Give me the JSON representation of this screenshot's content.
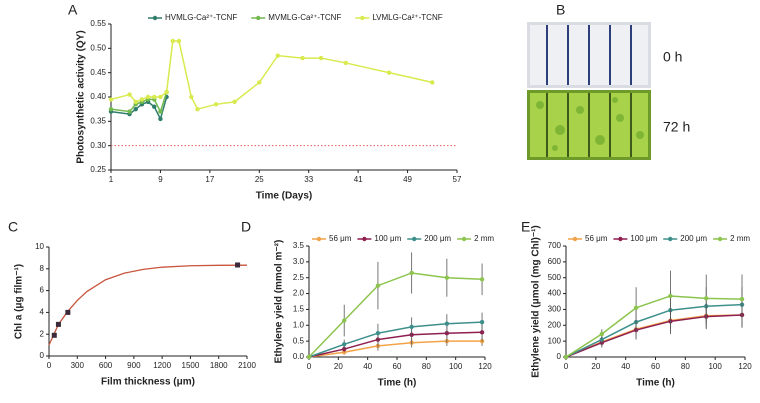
{
  "chart_data": [
    {
      "type": "line",
      "panel": "A",
      "x_label": "Time (Days)",
      "y_label": "Photosynthetic activity (QY)",
      "xlim": [
        1,
        57
      ],
      "xticks": [
        1,
        9,
        17,
        25,
        33,
        41,
        49,
        57
      ],
      "ylim": [
        0.25,
        0.55
      ],
      "yticks": [
        0.25,
        {
          "value": 0.3,
          "label": "0.30"
        },
        0.35,
        {
          "value": 0.4,
          "label": "0.40"
        },
        0.45,
        {
          "value": 0.5,
          "label": "0.50"
        },
        0.55
      ],
      "legend": "top",
      "reference_line": {
        "value": 0.3,
        "color": "#e05a5a"
      },
      "series": [
        {
          "name": "HVMLG-Ca²⁺-TCNF",
          "color": "#2f7d6a",
          "x": [
            1,
            4,
            5,
            6,
            7,
            8,
            9,
            10
          ],
          "values": [
            0.37,
            0.365,
            0.375,
            0.385,
            0.39,
            0.38,
            0.355,
            0.4
          ]
        },
        {
          "name": "MVMLG-Ca²⁺-TCNF",
          "color": "#72b94f",
          "x": [
            1,
            4,
            5,
            6,
            7,
            8,
            9,
            10
          ],
          "values": [
            0.375,
            0.37,
            0.385,
            0.39,
            0.395,
            0.395,
            0.37,
            0.41
          ]
        },
        {
          "name": "LVMLG-Ca²⁺-TCNF",
          "color": "#d8ea4e",
          "x": [
            1,
            4,
            5,
            6,
            7,
            8,
            9,
            10,
            11,
            12,
            14,
            15,
            18,
            21,
            25,
            28,
            32,
            35,
            39,
            46,
            53
          ],
          "values": [
            0.395,
            0.405,
            0.39,
            0.395,
            0.4,
            0.4,
            0.4,
            0.41,
            0.515,
            0.515,
            0.4,
            0.375,
            0.385,
            0.39,
            0.43,
            0.485,
            0.48,
            0.48,
            0.47,
            0.45,
            0.43
          ]
        }
      ]
    },
    {
      "type": "scatter",
      "panel": "C",
      "x_label": "Film thickness (μm)",
      "y_label": "Chl a (μg film⁻¹)",
      "xlim": [
        0,
        2100
      ],
      "xticks": [
        0,
        300,
        600,
        900,
        1200,
        1500,
        1800,
        2100
      ],
      "ylim": [
        0,
        10
      ],
      "yticks": [
        0,
        2,
        4,
        6,
        8,
        10
      ],
      "series": [
        {
          "mode": "line",
          "color": "#c8553d",
          "x": [
            0,
            100,
            200,
            300,
            400,
            600,
            800,
            1000,
            1200,
            1500,
            1800,
            2100
          ],
          "values": [
            1.0,
            2.9,
            4.1,
            5.1,
            5.9,
            7.0,
            7.6,
            7.95,
            8.15,
            8.28,
            8.32,
            8.33
          ]
        },
        {
          "mode": "markers",
          "color": "#3a2a3a",
          "x": [
            56,
            100,
            200,
            2000
          ],
          "values": [
            1.9,
            2.9,
            4.0,
            8.35
          ]
        }
      ]
    },
    {
      "type": "line",
      "panel": "D",
      "x_label": "Time (h)",
      "y_label": "Ethylene yield (mmol m⁻²)",
      "xlim": [
        0,
        120
      ],
      "xticks": [
        0,
        20,
        40,
        60,
        80,
        100,
        120
      ],
      "ylim": [
        0,
        3.5
      ],
      "yticks": [
        {
          "value": 0,
          "label": "0.0"
        },
        0.5,
        {
          "value": 1,
          "label": "1.0"
        },
        1.5,
        {
          "value": 2,
          "label": "2.0"
        },
        2.5,
        {
          "value": 3,
          "label": "3.0"
        },
        3.5
      ],
      "legend": "top",
      "series": [
        {
          "name": "56 μm",
          "color": "#f2a348",
          "x": [
            0,
            24,
            47,
            70,
            94,
            118
          ],
          "values": [
            0,
            0.15,
            0.35,
            0.45,
            0.5,
            0.5
          ],
          "errors": [
            0,
            0.08,
            0.15,
            0.15,
            0.15,
            0.15
          ]
        },
        {
          "name": "100 μm",
          "color": "#8e1f50",
          "x": [
            0,
            24,
            47,
            70,
            94,
            118
          ],
          "values": [
            0,
            0.25,
            0.55,
            0.7,
            0.75,
            0.78
          ],
          "errors": [
            0,
            0.1,
            0.25,
            0.3,
            0.3,
            0.3
          ]
        },
        {
          "name": "200 μm",
          "color": "#3d8f8c",
          "x": [
            0,
            24,
            47,
            70,
            94,
            118
          ],
          "values": [
            0,
            0.4,
            0.75,
            0.95,
            1.05,
            1.1
          ],
          "errors": [
            0,
            0.15,
            0.3,
            0.3,
            0.3,
            0.3
          ]
        },
        {
          "name": "2 mm",
          "color": "#8cc44e",
          "x": [
            0,
            24,
            47,
            70,
            94,
            118
          ],
          "values": [
            0,
            1.15,
            2.25,
            2.65,
            2.5,
            2.45
          ],
          "errors": [
            0,
            0.5,
            0.75,
            0.65,
            0.6,
            0.5
          ]
        }
      ]
    },
    {
      "type": "line",
      "panel": "E",
      "x_label": "Time (h)",
      "y_label": "Ethylene yield (μmol (mg Chl)⁻¹)",
      "xlim": [
        0,
        120
      ],
      "xticks": [
        0,
        20,
        40,
        60,
        80,
        100,
        120
      ],
      "ylim": [
        0,
        700
      ],
      "yticks": [
        0,
        100,
        200,
        300,
        400,
        500,
        600,
        700
      ],
      "legend": "top",
      "series": [
        {
          "name": "56 μm",
          "color": "#f2a348",
          "x": [
            0,
            24,
            47,
            70,
            94,
            118
          ],
          "values": [
            0,
            95,
            175,
            230,
            260,
            265
          ],
          "errors": [
            0,
            30,
            60,
            80,
            80,
            80
          ]
        },
        {
          "name": "100 μm",
          "color": "#8e1f50",
          "x": [
            0,
            24,
            47,
            70,
            94,
            118
          ],
          "values": [
            0,
            90,
            170,
            225,
            255,
            265
          ],
          "errors": [
            0,
            30,
            60,
            80,
            80,
            80
          ]
        },
        {
          "name": "200 μm",
          "color": "#3d8f8c",
          "x": [
            0,
            24,
            47,
            70,
            94,
            118
          ],
          "values": [
            0,
            110,
            220,
            295,
            320,
            330
          ],
          "errors": [
            0,
            35,
            90,
            120,
            120,
            110
          ]
        },
        {
          "name": "2 mm",
          "color": "#8cc44e",
          "x": [
            0,
            24,
            47,
            70,
            94,
            118
          ],
          "values": [
            0,
            145,
            310,
            385,
            370,
            365
          ],
          "errors": [
            0,
            30,
            130,
            160,
            150,
            155
          ]
        }
      ]
    }
  ],
  "photo": {
    "panel": "B",
    "labels": [
      "0 h",
      "72 h"
    ]
  }
}
